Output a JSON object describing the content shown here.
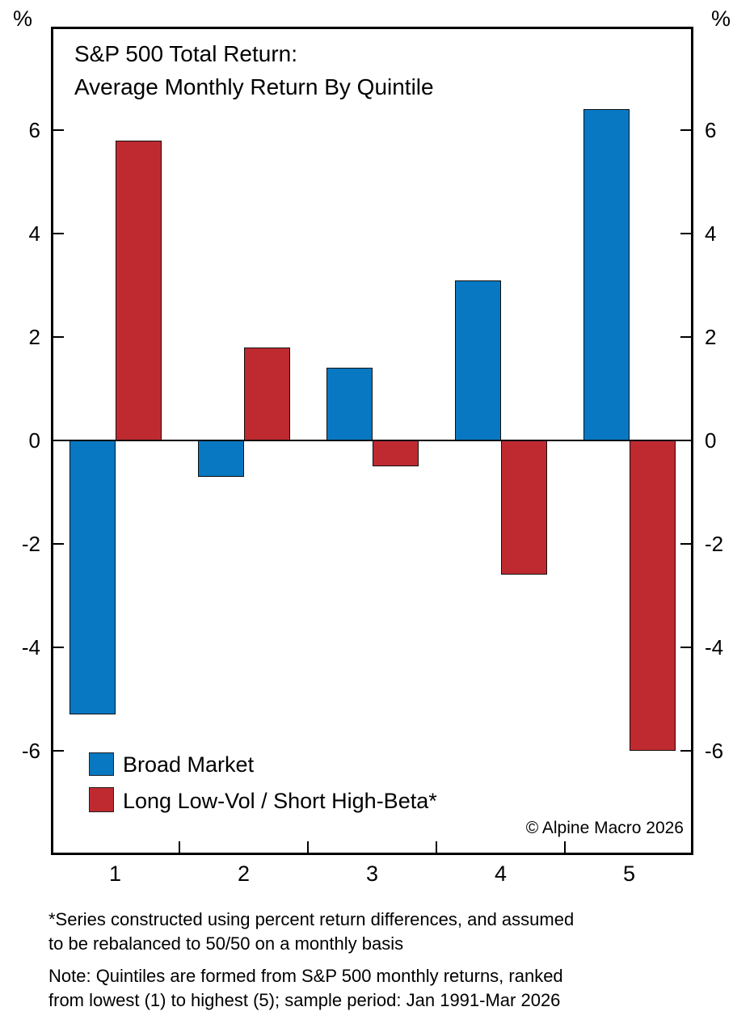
{
  "title": {
    "line1": "S&P 500 Total Return:",
    "line2": "Average Monthly Return By Quintile"
  },
  "axes": {
    "left_unit": "%",
    "right_unit": "%",
    "y_tick_values": [
      6,
      4,
      2,
      0,
      -2,
      -4,
      -6
    ],
    "x_tick_labels": [
      "1",
      "2",
      "3",
      "4",
      "5"
    ]
  },
  "chart_data": {
    "type": "bar",
    "title": "S&P 500 Total Return: Average Monthly Return By Quintile",
    "categories": [
      "1",
      "2",
      "3",
      "4",
      "5"
    ],
    "series": [
      {
        "name": "Broad Market",
        "color": "#0878c2",
        "values": [
          -5.3,
          -0.7,
          1.4,
          3.1,
          6.4
        ]
      },
      {
        "name": "Long Low-Vol / Short High-Beta*",
        "color": "#bf2a31",
        "values": [
          5.8,
          1.8,
          -0.5,
          -2.6,
          -6.0
        ]
      }
    ],
    "xlabel": "",
    "ylabel": "%",
    "ylim": [
      -8,
      8
    ],
    "y_tick_step": 2,
    "grid": false,
    "legend_position": "lower-left"
  },
  "legend": {
    "items": [
      {
        "label": "Broad Market",
        "color": "#0878c2"
      },
      {
        "label": "Long Low-Vol / Short High-Beta*",
        "color": "#bf2a31"
      }
    ]
  },
  "copyright": "© Alpine Macro 2026",
  "footnotes": {
    "line1": "*Series constructed using percent return differences, and assumed",
    "line2": "to be rebalanced to 50/50 on a monthly basis",
    "line3": "Note: Quintiles are formed from S&P 500 monthly returns, ranked",
    "line4": "from lowest (1) to highest (5); sample period: Jan 1991-Mar 2026"
  },
  "colors": {
    "broad_market": "#0878c2",
    "long_lowvol_short_highbeta": "#bf2a31",
    "axis": "#000000",
    "background": "#ffffff"
  }
}
